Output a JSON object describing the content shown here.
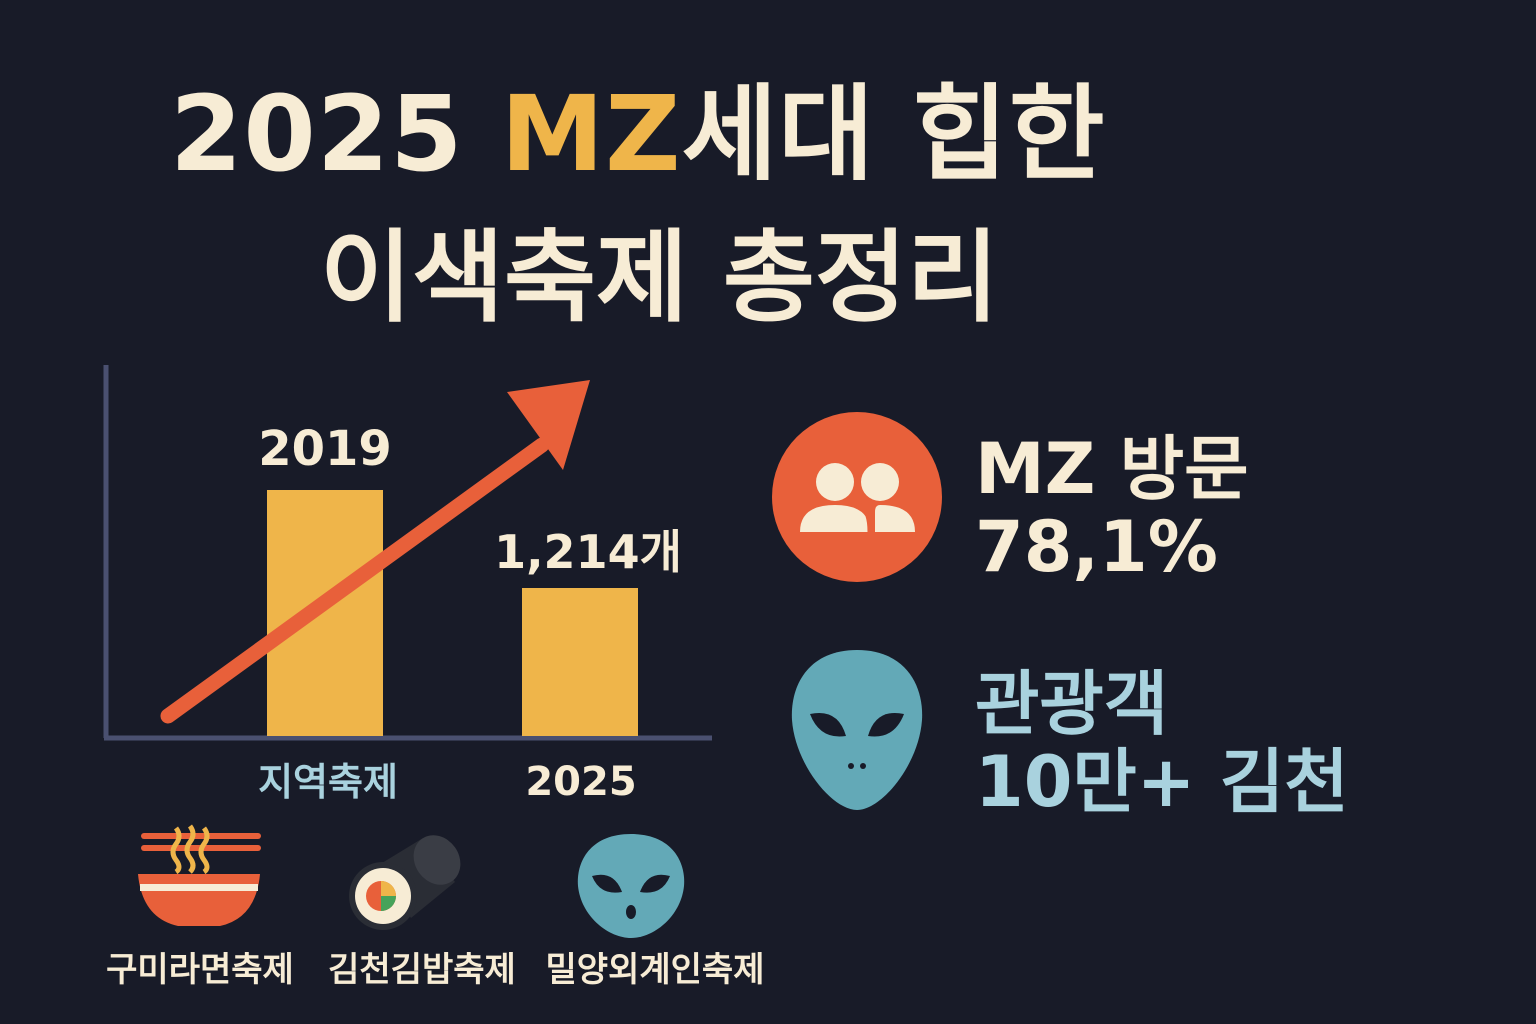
{
  "title": {
    "line1_prefix": "2025 ",
    "line1_accent": "MZ",
    "line1_suffix": "세대 힙한",
    "line2": "이색축제 총정리"
  },
  "chart_data": {
    "type": "bar",
    "categories": [
      "지역축제",
      "2025"
    ],
    "bar_top_labels": [
      "2019",
      "1,214개"
    ],
    "values": [
      1.0,
      0.6
    ],
    "trend": "up",
    "colors": {
      "bar": "#efb54a",
      "arrow": "#e8603a",
      "axis": "#4a5070"
    }
  },
  "stats": {
    "mz_visit": {
      "line1": "MZ 방문",
      "line2": "78,1%",
      "icon": "people-icon"
    },
    "tourists": {
      "line1": "관광객",
      "line2": "10만+ 김천",
      "icon": "alien-icon"
    }
  },
  "festivals": [
    {
      "label": "구미라면축제",
      "icon": "ramen-bowl-icon"
    },
    {
      "label": "김천김밥축제",
      "icon": "gimbap-icon"
    },
    {
      "label": "밀양외계인축제",
      "icon": "alien-mask-icon"
    }
  ],
  "colors": {
    "background": "#181b28",
    "cream": "#f7ecd5",
    "gold": "#efb54a",
    "orange": "#e8603a",
    "teal": "#63a9b7",
    "light_blue": "#a9d2de"
  }
}
